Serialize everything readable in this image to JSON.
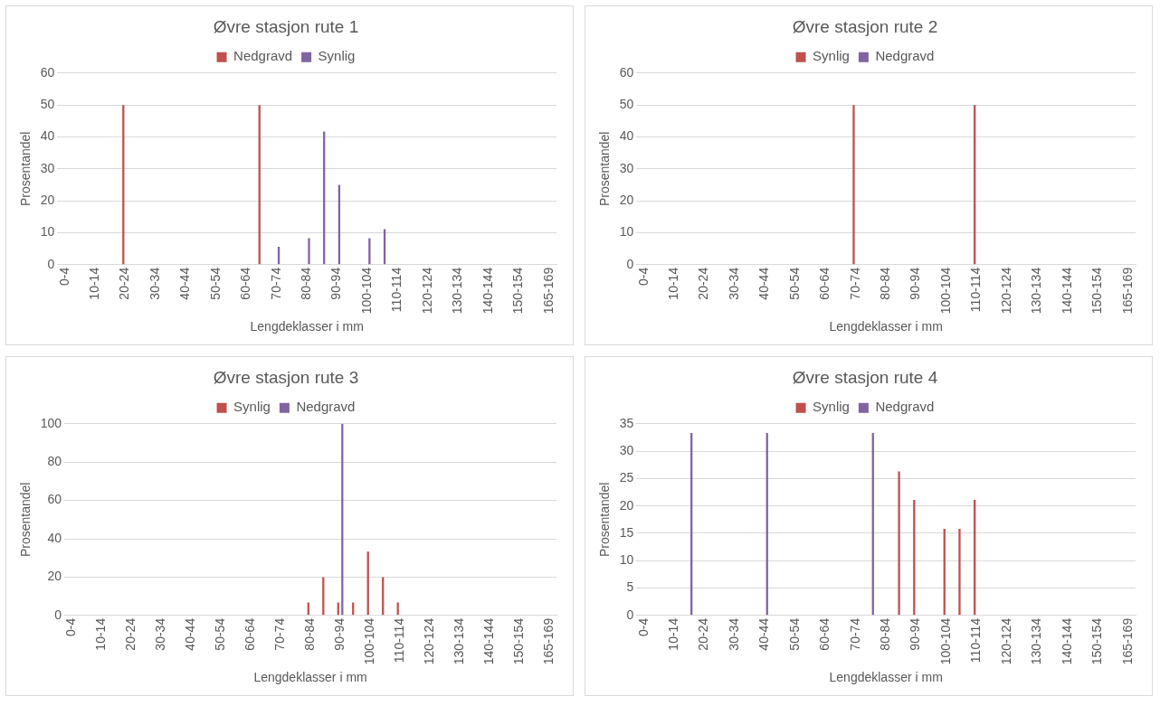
{
  "chart_data": [
    {
      "type": "bar",
      "title": "Øvre stasjon rute 1",
      "xlabel": "Lengdeklasser i mm",
      "ylabel": "Prosentandel",
      "categories": [
        "0-4",
        null,
        "10-14",
        null,
        "20-24",
        null,
        "30-34",
        null,
        "40-44",
        null,
        "50-54",
        null,
        "60-64",
        null,
        "70-74",
        null,
        "80-84",
        null,
        "90-94",
        null,
        "100-104",
        null,
        "110-114",
        null,
        "120-124",
        null,
        "130-134",
        null,
        "140-144",
        null,
        "150-154",
        null,
        "165-169"
      ],
      "series": [
        {
          "name": "Nedgravd",
          "color": "#c0504d",
          "values": [
            0,
            0,
            0,
            0,
            50,
            0,
            0,
            0,
            0,
            0,
            0,
            0,
            0,
            50,
            0,
            0,
            0,
            0,
            0,
            0,
            0,
            0,
            0,
            0,
            0,
            0,
            0,
            0,
            0,
            0,
            0,
            0,
            0
          ]
        },
        {
          "name": "Synlig",
          "color": "#8064a2",
          "values": [
            0,
            0,
            0,
            0,
            0,
            0,
            0,
            0,
            0,
            0,
            0,
            0,
            0,
            0,
            5.6,
            0,
            8.3,
            41.7,
            25,
            0,
            8.3,
            11.1,
            0,
            0,
            0,
            0,
            0,
            0,
            0,
            0,
            0,
            0,
            0
          ]
        }
      ],
      "ylim": [
        0,
        60
      ],
      "yticks": [
        0,
        10,
        20,
        30,
        40,
        50,
        60
      ],
      "grid": "y",
      "legend": "top"
    },
    {
      "type": "bar",
      "title": "Øvre stasjon rute 2",
      "xlabel": "Lengdeklasser i mm",
      "ylabel": "Prosentandel",
      "categories": [
        "0-4",
        null,
        "10-14",
        null,
        "20-24",
        null,
        "30-34",
        null,
        "40-44",
        null,
        "50-54",
        null,
        "60-64",
        null,
        "70-74",
        null,
        "80-84",
        null,
        "90-94",
        null,
        "100-104",
        null,
        "110-114",
        null,
        "120-124",
        null,
        "130-134",
        null,
        "140-144",
        null,
        "150-154",
        null,
        "165-169"
      ],
      "series": [
        {
          "name": "Synlig",
          "color": "#c0504d",
          "values": [
            0,
            0,
            0,
            0,
            0,
            0,
            0,
            0,
            0,
            0,
            0,
            0,
            0,
            0,
            50,
            0,
            0,
            0,
            0,
            0,
            0,
            0,
            50,
            0,
            0,
            0,
            0,
            0,
            0,
            0,
            0,
            0,
            0
          ]
        },
        {
          "name": "Nedgravd",
          "color": "#8064a2",
          "values": [
            0,
            0,
            0,
            0,
            0,
            0,
            0,
            0,
            0,
            0,
            0,
            0,
            0,
            0,
            0,
            0,
            0,
            0,
            0,
            0,
            0,
            0,
            0,
            0,
            0,
            0,
            0,
            0,
            0,
            0,
            0,
            0,
            0
          ]
        }
      ],
      "ylim": [
        0,
        60
      ],
      "yticks": [
        0,
        10,
        20,
        30,
        40,
        50,
        60
      ],
      "grid": "y",
      "legend": "top"
    },
    {
      "type": "bar",
      "title": "Øvre stasjon rute 3",
      "xlabel": "Lengdeklasser i mm",
      "ylabel": "Prosentandel",
      "categories": [
        "0-4",
        null,
        "10-14",
        null,
        "20-24",
        null,
        "30-34",
        null,
        "40-44",
        null,
        "50-54",
        null,
        "60-64",
        null,
        "70-74",
        null,
        "80-84",
        null,
        "90-94",
        null,
        "100-104",
        null,
        "110-114",
        null,
        "120-124",
        null,
        "130-134",
        null,
        "140-144",
        null,
        "150-154",
        null,
        "165-169"
      ],
      "series": [
        {
          "name": "Synlig",
          "color": "#c0504d",
          "values": [
            0,
            0,
            0,
            0,
            0,
            0,
            0,
            0,
            0,
            0,
            0,
            0,
            0,
            0,
            0,
            0,
            6.7,
            20,
            6.7,
            6.7,
            33.3,
            20,
            6.7,
            0,
            0,
            0,
            0,
            0,
            0,
            0,
            0,
            0,
            0
          ]
        },
        {
          "name": "Nedgravd",
          "color": "#8064a2",
          "values": [
            0,
            0,
            0,
            0,
            0,
            0,
            0,
            0,
            0,
            0,
            0,
            0,
            0,
            0,
            0,
            0,
            0,
            0,
            100,
            0,
            0,
            0,
            0,
            0,
            0,
            0,
            0,
            0,
            0,
            0,
            0,
            0,
            0
          ]
        }
      ],
      "ylim": [
        0,
        100
      ],
      "yticks": [
        0,
        20,
        40,
        60,
        80,
        100
      ],
      "grid": "y",
      "legend": "top"
    },
    {
      "type": "bar",
      "title": "Øvre stasjon rute 4",
      "xlabel": "Lengdeklasser i mm",
      "ylabel": "Prosentandel",
      "categories": [
        "0-4",
        null,
        "10-14",
        null,
        "20-24",
        null,
        "30-34",
        null,
        "40-44",
        null,
        "50-54",
        null,
        "60-64",
        null,
        "70-74",
        null,
        "80-84",
        null,
        "90-94",
        null,
        "100-104",
        null,
        "110-114",
        null,
        "120-124",
        null,
        "130-134",
        null,
        "140-144",
        null,
        "150-154",
        null,
        "165-169"
      ],
      "series": [
        {
          "name": "Synlig",
          "color": "#c0504d",
          "values": [
            0,
            0,
            0,
            0,
            0,
            0,
            0,
            0,
            0,
            0,
            0,
            0,
            0,
            0,
            0,
            0,
            0,
            26.3,
            21.1,
            0,
            15.8,
            15.8,
            21.1,
            0,
            0,
            0,
            0,
            0,
            0,
            0,
            0,
            0,
            0
          ]
        },
        {
          "name": "Nedgravd",
          "color": "#8064a2",
          "values": [
            0,
            0,
            0,
            33.3,
            0,
            0,
            0,
            0,
            33.3,
            0,
            0,
            0,
            0,
            0,
            0,
            33.3,
            0,
            0,
            0,
            0,
            0,
            0,
            0,
            0,
            0,
            0,
            0,
            0,
            0,
            0,
            0,
            0,
            0
          ]
        }
      ],
      "ylim": [
        0,
        35
      ],
      "yticks": [
        0,
        5,
        10,
        15,
        20,
        25,
        30,
        35
      ],
      "grid": "y",
      "legend": "top"
    }
  ]
}
